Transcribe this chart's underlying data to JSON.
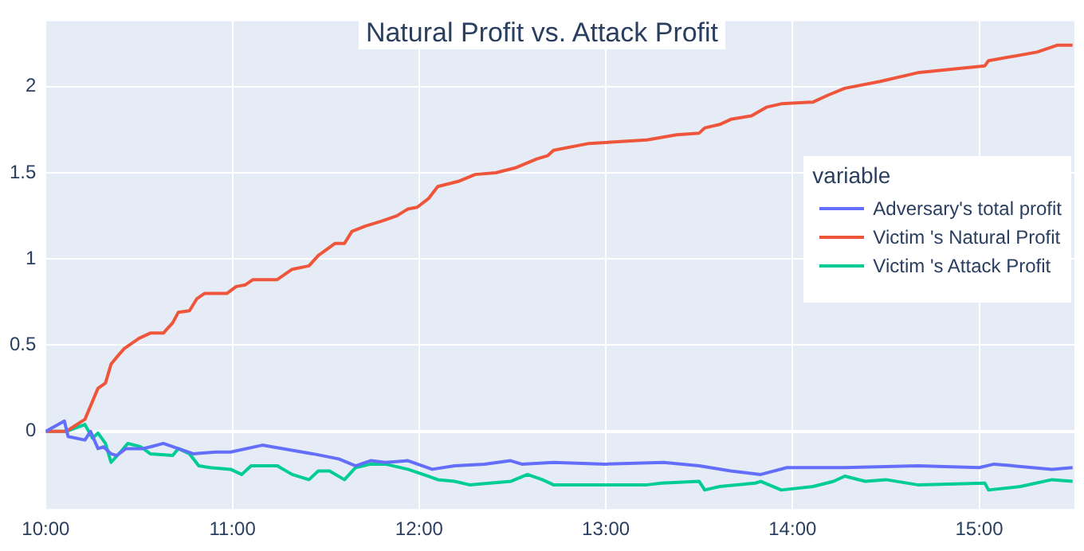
{
  "chart_data": {
    "type": "line",
    "title": "Natural Profit vs. Attack Profit",
    "legend_title": "variable",
    "legend": "right",
    "grid": true,
    "marker": "none",
    "line_style": "solid",
    "xlim": [
      10,
      15.51
    ],
    "xticks": [
      {
        "value": 10,
        "label": "10:00"
      },
      {
        "value": 11,
        "label": "11:00"
      },
      {
        "value": 12,
        "label": "12:00"
      },
      {
        "value": 13,
        "label": "13:00"
      },
      {
        "value": 14,
        "label": "14:00"
      },
      {
        "value": 15,
        "label": "15:00"
      }
    ],
    "ylim": [
      -0.45,
      2.38
    ],
    "yticks": [
      0,
      0.5,
      1,
      1.5,
      2
    ],
    "series": [
      {
        "name": "Adversary's total profit",
        "color": "#636efa",
        "x": [
          10,
          10.1,
          10.12,
          10.21,
          10.24,
          10.28,
          10.31,
          10.35,
          10.38,
          10.43,
          10.52,
          10.56,
          10.63,
          10.71,
          10.79,
          10.91,
          10.99,
          11.16,
          11.27,
          11.43,
          11.57,
          11.66,
          11.74,
          11.82,
          11.94,
          12.07,
          12.19,
          12.35,
          12.49,
          12.55,
          12.72,
          13.0,
          13.31,
          13.5,
          13.67,
          13.83,
          13.97,
          14.28,
          14.67,
          15.0,
          15.08,
          15.39,
          15.5
        ],
        "values": [
          0,
          0.06,
          -0.03,
          -0.05,
          0,
          -0.1,
          -0.09,
          -0.13,
          -0.14,
          -0.1,
          -0.1,
          -0.09,
          -0.07,
          -0.1,
          -0.13,
          -0.12,
          -0.12,
          -0.08,
          -0.1,
          -0.13,
          -0.16,
          -0.2,
          -0.17,
          -0.18,
          -0.17,
          -0.22,
          -0.2,
          -0.19,
          -0.17,
          -0.19,
          -0.18,
          -0.19,
          -0.18,
          -0.2,
          -0.23,
          -0.25,
          -0.21,
          -0.21,
          -0.2,
          -0.21,
          -0.19,
          -0.22,
          -0.21
        ]
      },
      {
        "name": "Victim 's Natural Profit",
        "color": "#ef553b",
        "x": [
          10,
          10.11,
          10.21,
          10.28,
          10.32,
          10.35,
          10.38,
          10.42,
          10.5,
          10.56,
          10.63,
          10.68,
          10.71,
          10.77,
          10.81,
          10.85,
          10.97,
          11.02,
          11.07,
          11.11,
          11.24,
          11.32,
          11.41,
          11.46,
          11.55,
          11.6,
          11.64,
          11.71,
          11.8,
          11.88,
          11.94,
          11.99,
          12.05,
          12.1,
          12.21,
          12.3,
          12.41,
          12.52,
          12.63,
          12.69,
          12.72,
          12.91,
          13.22,
          13.38,
          13.5,
          13.53,
          13.61,
          13.67,
          13.78,
          13.86,
          13.94,
          14.11,
          14.19,
          14.28,
          14.47,
          14.67,
          15.03,
          15.05,
          15.31,
          15.42,
          15.5
        ],
        "values": [
          0,
          0,
          0.07,
          0.25,
          0.28,
          0.39,
          0.43,
          0.48,
          0.54,
          0.57,
          0.57,
          0.63,
          0.69,
          0.7,
          0.77,
          0.8,
          0.8,
          0.84,
          0.85,
          0.88,
          0.88,
          0.94,
          0.96,
          1.02,
          1.09,
          1.09,
          1.16,
          1.19,
          1.22,
          1.25,
          1.29,
          1.3,
          1.35,
          1.42,
          1.45,
          1.49,
          1.5,
          1.53,
          1.58,
          1.6,
          1.63,
          1.67,
          1.69,
          1.72,
          1.73,
          1.76,
          1.78,
          1.81,
          1.83,
          1.88,
          1.9,
          1.91,
          1.95,
          1.99,
          2.03,
          2.08,
          2.12,
          2.15,
          2.2,
          2.24,
          2.24
        ]
      },
      {
        "name": "Victim 's Attack Profit",
        "color": "#00cc96",
        "x": [
          10,
          10.11,
          10.21,
          10.25,
          10.28,
          10.32,
          10.35,
          10.4,
          10.44,
          10.51,
          10.56,
          10.68,
          10.71,
          10.77,
          10.82,
          10.88,
          10.99,
          11.05,
          11.1,
          11.24,
          11.32,
          11.41,
          11.46,
          11.52,
          11.6,
          11.66,
          11.74,
          11.82,
          11.94,
          12.05,
          12.1,
          12.19,
          12.27,
          12.38,
          12.49,
          12.58,
          12.66,
          12.72,
          13.0,
          13.22,
          13.3,
          13.5,
          13.53,
          13.61,
          13.8,
          13.83,
          13.94,
          14.11,
          14.22,
          14.28,
          14.39,
          14.5,
          14.67,
          15.03,
          15.05,
          15.22,
          15.39,
          15.5
        ],
        "values": [
          0,
          0,
          0.04,
          -0.04,
          -0.01,
          -0.07,
          -0.18,
          -0.12,
          -0.07,
          -0.09,
          -0.13,
          -0.14,
          -0.1,
          -0.13,
          -0.2,
          -0.21,
          -0.22,
          -0.25,
          -0.2,
          -0.2,
          -0.25,
          -0.28,
          -0.23,
          -0.23,
          -0.28,
          -0.21,
          -0.19,
          -0.19,
          -0.22,
          -0.26,
          -0.28,
          -0.29,
          -0.31,
          -0.3,
          -0.29,
          -0.25,
          -0.28,
          -0.31,
          -0.31,
          -0.31,
          -0.3,
          -0.29,
          -0.34,
          -0.32,
          -0.3,
          -0.29,
          -0.34,
          -0.32,
          -0.29,
          -0.26,
          -0.29,
          -0.28,
          -0.31,
          -0.3,
          -0.34,
          -0.32,
          -0.28,
          -0.29
        ]
      }
    ]
  }
}
